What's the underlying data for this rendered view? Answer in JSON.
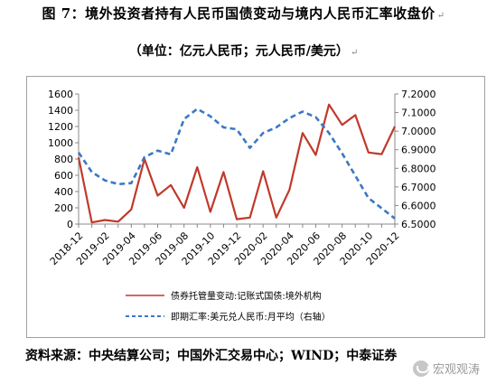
{
  "header": {
    "title": "图 7：境外投资者持有人民币国债变动与境内人民币汇率收盘价",
    "subtitle": "（单位：亿元人民币；元人民币/美元）",
    "return_mark": "↵"
  },
  "footer": {
    "source": "资料来源：中央结算公司；中国外汇交易中心；WIND；中泰证券",
    "watermark": "宏观观涛"
  },
  "chart_data": {
    "type": "line",
    "x_tick_labels": [
      "2018-12",
      "2019-02",
      "2019-04",
      "2019-06",
      "2019-08",
      "2019-10",
      "2019-12",
      "2020-02",
      "2020-04",
      "2020-06",
      "2020-08",
      "2020-10",
      "2020-12"
    ],
    "x": [
      "2018-12",
      "2019-01",
      "2019-02",
      "2019-03",
      "2019-04",
      "2019-05",
      "2019-06",
      "2019-07",
      "2019-08",
      "2019-09",
      "2019-10",
      "2019-11",
      "2019-12",
      "2020-01",
      "2020-02",
      "2020-03",
      "2020-04",
      "2020-05",
      "2020-06",
      "2020-07",
      "2020-08",
      "2020-09",
      "2020-10",
      "2020-11",
      "2020-12"
    ],
    "left_axis": {
      "min": 0,
      "max": 1600,
      "ticks": [
        "0",
        "200",
        "400",
        "600",
        "800",
        "1000",
        "1200",
        "1400",
        "1600"
      ]
    },
    "right_axis": {
      "min": 6.5,
      "max": 7.2,
      "ticks": [
        "6.5000",
        "6.6000",
        "6.7000",
        "6.8000",
        "6.9000",
        "7.0000",
        "7.1000",
        "7.2000"
      ]
    },
    "grid": false,
    "legend_placement": "bottom",
    "series": [
      {
        "name": "债券托管量变动:记账式国债:境外机构",
        "axis": "left",
        "style": "solid",
        "color": "#c0392b",
        "values": [
          820,
          20,
          50,
          30,
          180,
          800,
          350,
          480,
          200,
          700,
          150,
          640,
          60,
          80,
          650,
          80,
          420,
          1120,
          850,
          1470,
          1220,
          1340,
          880,
          860,
          1200
        ]
      },
      {
        "name": "即期汇率:美元兑人民币:月平均（右轴）",
        "axis": "right",
        "style": "dashed",
        "color": "#3b78c4",
        "values": [
          6.885,
          6.78,
          6.735,
          6.715,
          6.72,
          6.86,
          6.895,
          6.875,
          7.065,
          7.12,
          7.08,
          7.02,
          7.01,
          6.91,
          6.99,
          7.02,
          7.07,
          7.105,
          7.075,
          6.99,
          6.88,
          6.76,
          6.64,
          6.585,
          6.53
        ]
      }
    ]
  }
}
